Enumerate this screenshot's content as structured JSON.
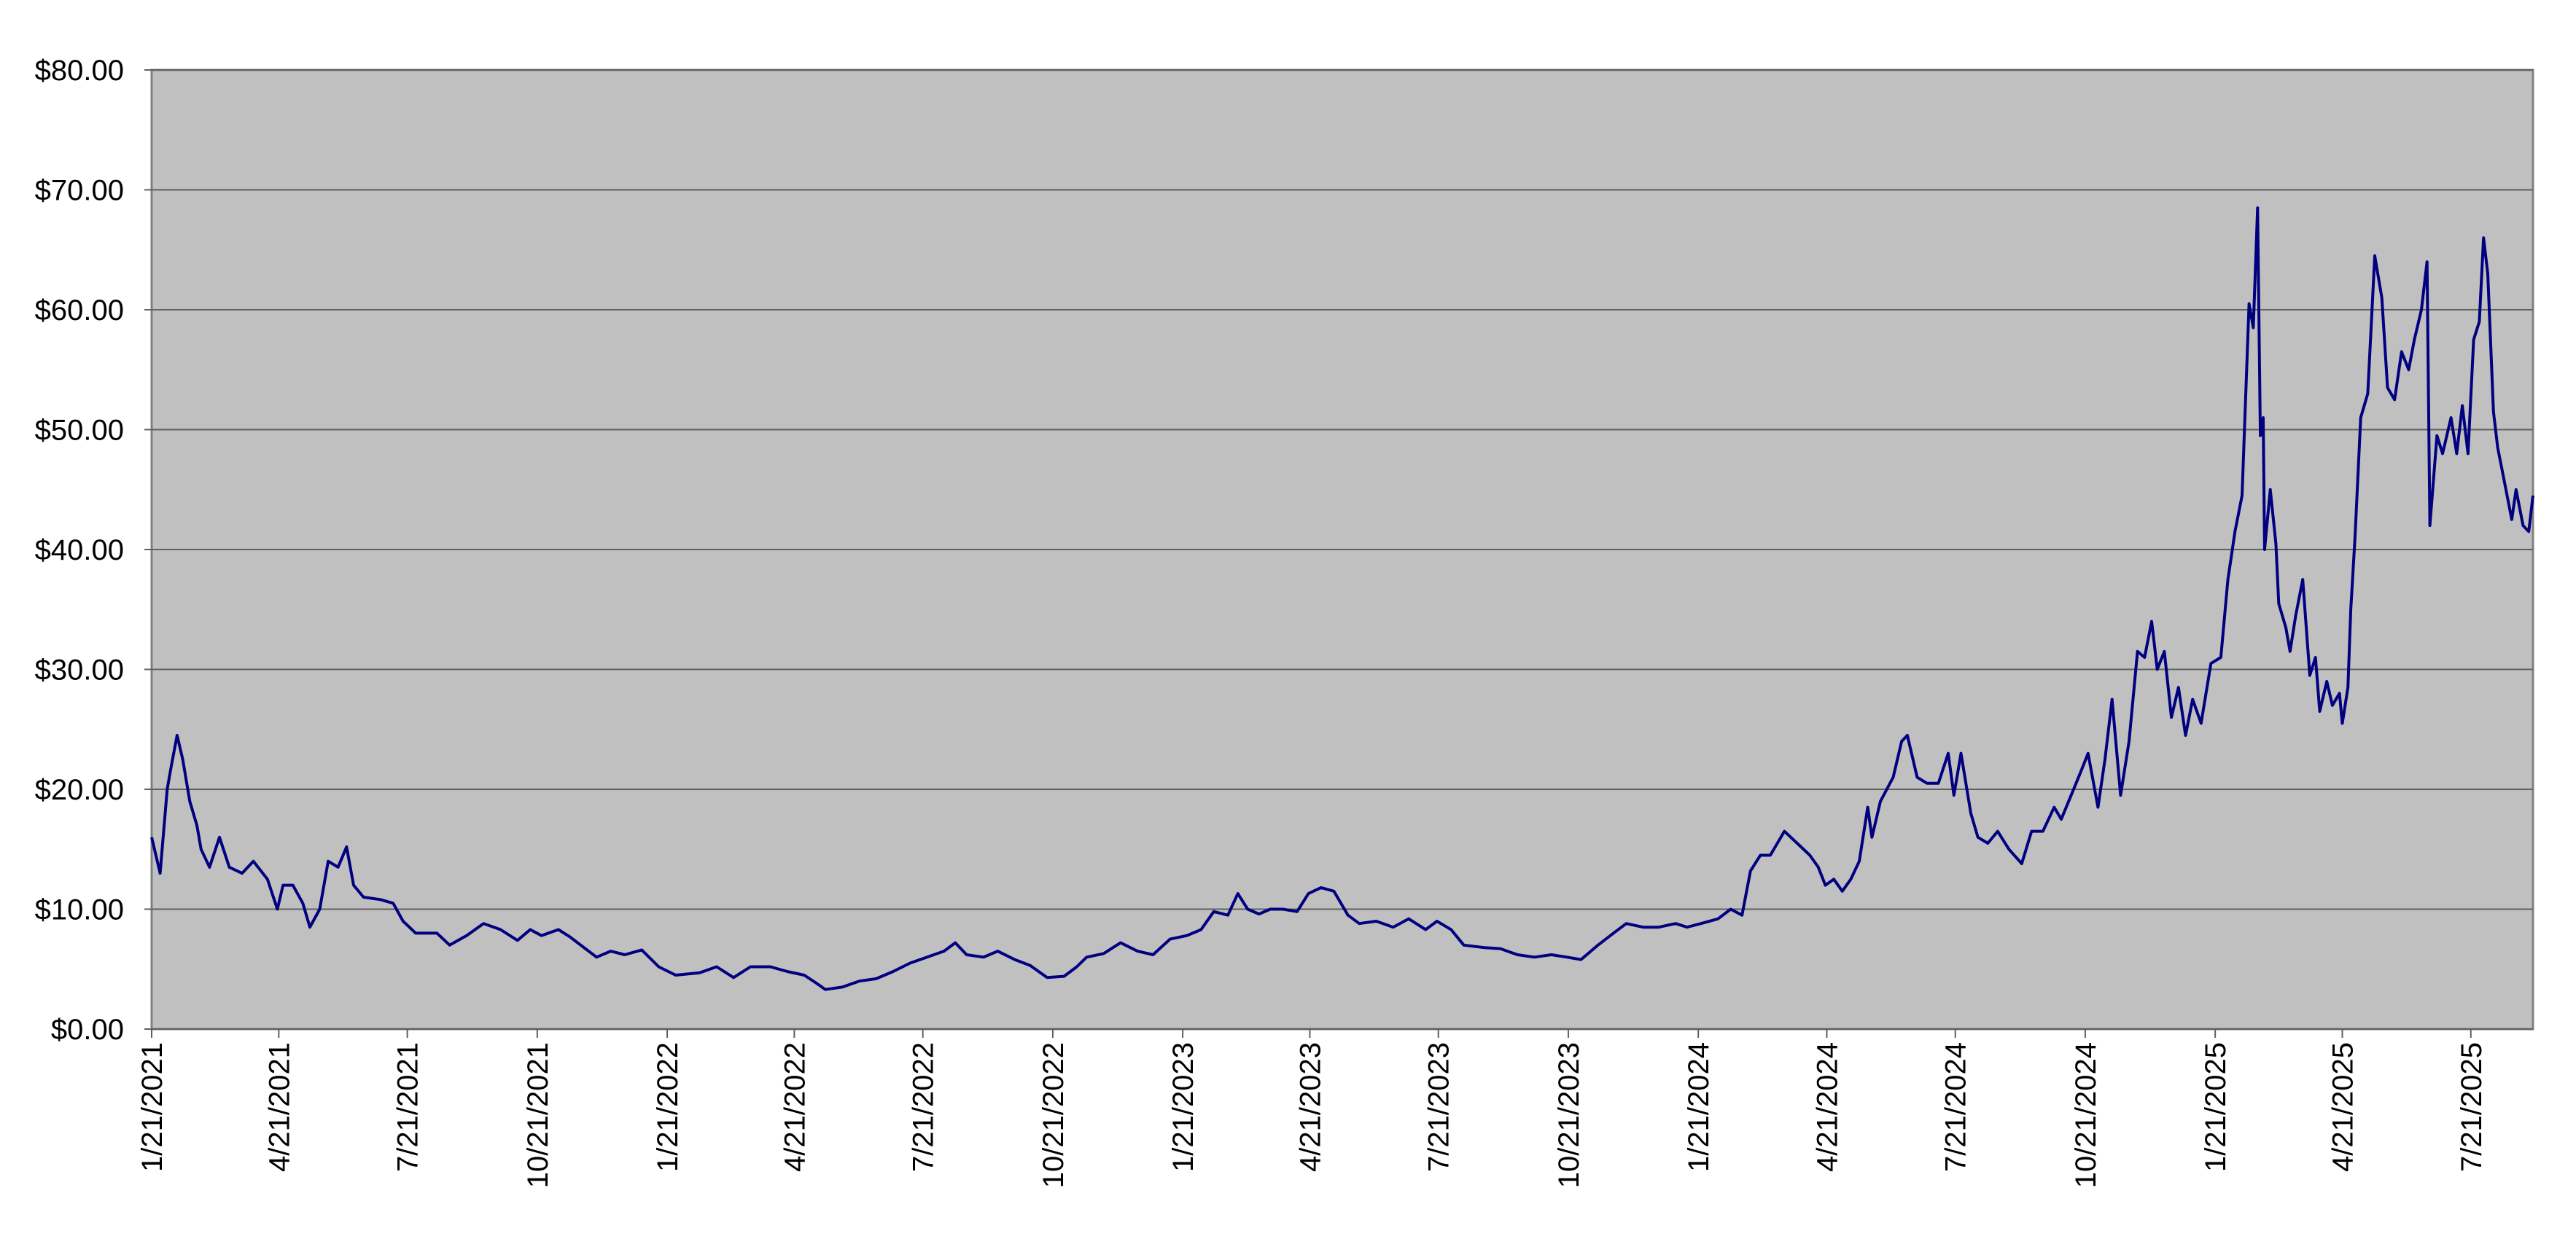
{
  "chart_data": {
    "type": "line",
    "color": "#000080",
    "grid": true,
    "x": [
      "2021-01-21",
      "2021-01-27",
      "2021-02-01",
      "2021-02-04",
      "2021-02-08",
      "2021-02-12",
      "2021-02-17",
      "2021-02-22",
      "2021-02-25",
      "2021-03-03",
      "2021-03-10",
      "2021-03-17",
      "2021-03-26",
      "2021-04-03",
      "2021-04-13",
      "2021-04-20",
      "2021-04-24",
      "2021-05-01",
      "2021-05-08",
      "2021-05-13",
      "2021-05-20",
      "2021-05-26",
      "2021-06-02",
      "2021-06-08",
      "2021-06-13",
      "2021-06-20",
      "2021-07-02",
      "2021-07-11",
      "2021-07-18",
      "2021-07-27",
      "2021-08-11",
      "2021-08-20",
      "2021-09-01",
      "2021-09-13",
      "2021-09-25",
      "2021-10-07",
      "2021-10-16",
      "2021-10-24",
      "2021-11-05",
      "2021-11-13",
      "2021-11-23",
      "2021-12-02",
      "2021-12-12",
      "2021-12-22",
      "2022-01-03",
      "2022-01-15",
      "2022-01-27",
      "2022-02-13",
      "2022-02-25",
      "2022-03-09",
      "2022-03-21",
      "2022-04-04",
      "2022-04-16",
      "2022-04-28",
      "2022-05-07",
      "2022-05-13",
      "2022-05-25",
      "2022-06-06",
      "2022-06-18",
      "2022-06-30",
      "2022-07-12",
      "2022-07-24",
      "2022-08-05",
      "2022-08-13",
      "2022-08-21",
      "2022-09-02",
      "2022-09-12",
      "2022-09-24",
      "2022-10-05",
      "2022-10-17",
      "2022-10-29",
      "2022-11-07",
      "2022-11-14",
      "2022-11-26",
      "2022-12-08",
      "2022-12-20",
      "2022-12-31",
      "2023-01-12",
      "2023-01-24",
      "2023-02-03",
      "2023-02-12",
      "2023-02-22",
      "2023-03-01",
      "2023-03-08",
      "2023-03-16",
      "2023-03-24",
      "2023-04-02",
      "2023-04-12",
      "2023-04-20",
      "2023-04-29",
      "2023-05-08",
      "2023-05-18",
      "2023-05-26",
      "2023-06-07",
      "2023-06-19",
      "2023-06-30",
      "2023-07-12",
      "2023-07-20",
      "2023-07-30",
      "2023-08-08",
      "2023-08-22",
      "2023-09-03",
      "2023-09-15",
      "2023-09-27",
      "2023-10-09",
      "2023-10-20",
      "2023-10-30",
      "2023-11-11",
      "2023-11-22",
      "2023-12-01",
      "2023-12-13",
      "2023-12-24",
      "2024-01-05",
      "2024-01-13",
      "2024-01-23",
      "2024-02-04",
      "2024-02-13",
      "2024-02-21",
      "2024-02-27",
      "2024-03-05",
      "2024-03-12",
      "2024-03-22",
      "2024-03-31",
      "2024-04-09",
      "2024-04-15",
      "2024-04-20",
      "2024-04-26",
      "2024-05-02",
      "2024-05-08",
      "2024-05-14",
      "2024-05-20",
      "2024-05-23",
      "2024-05-29",
      "2024-06-07",
      "2024-06-13",
      "2024-06-17",
      "2024-06-24",
      "2024-07-01",
      "2024-07-09",
      "2024-07-16",
      "2024-07-20",
      "2024-07-25",
      "2024-08-01",
      "2024-08-06",
      "2024-08-13",
      "2024-08-20",
      "2024-08-28",
      "2024-09-06",
      "2024-09-13",
      "2024-09-21",
      "2024-09-29",
      "2024-10-04",
      "2024-10-11",
      "2024-10-18",
      "2024-10-23",
      "2024-10-30",
      "2024-11-04",
      "2024-11-09",
      "2024-11-15",
      "2024-11-21",
      "2024-11-27",
      "2024-12-02",
      "2024-12-07",
      "2024-12-11",
      "2024-12-16",
      "2024-12-21",
      "2024-12-26",
      "2024-12-31",
      "2025-01-05",
      "2025-01-11",
      "2025-01-18",
      "2025-01-25",
      "2025-01-30",
      "2025-02-04",
      "2025-02-09",
      "2025-02-14",
      "2025-02-17",
      "2025-02-20",
      "2025-02-22",
      "2025-02-24",
      "2025-02-25",
      "2025-03-01",
      "2025-03-05",
      "2025-03-07",
      "2025-03-12",
      "2025-03-15",
      "2025-03-19",
      "2025-03-24",
      "2025-03-29",
      "2025-04-02",
      "2025-04-05",
      "2025-04-10",
      "2025-04-14",
      "2025-04-19",
      "2025-04-21",
      "2025-04-25",
      "2025-04-27",
      "2025-04-30",
      "2025-05-04",
      "2025-05-09",
      "2025-05-14",
      "2025-05-19",
      "2025-05-23",
      "2025-05-28",
      "2025-06-02",
      "2025-06-07",
      "2025-06-11",
      "2025-06-16",
      "2025-06-20",
      "2025-06-22",
      "2025-06-27",
      "2025-07-01",
      "2025-07-07",
      "2025-07-11",
      "2025-07-15",
      "2025-07-19",
      "2025-07-23",
      "2025-07-27",
      "2025-07-30",
      "2025-08-02",
      "2025-08-06",
      "2025-08-09",
      "2025-08-14",
      "2025-08-19",
      "2025-08-22",
      "2025-08-27",
      "2025-08-31",
      "2025-09-03"
    ],
    "values": [
      16,
      13,
      20,
      22,
      24.5,
      22.5,
      19,
      17,
      15,
      13.5,
      16,
      13.5,
      13,
      14,
      12.5,
      10,
      12,
      12,
      10.5,
      8.5,
      10,
      14,
      13.5,
      15.2,
      12,
      11,
      10.8,
      10.5,
      9,
      8,
      8,
      7,
      7.8,
      8.8,
      8.3,
      7.4,
      8.3,
      7.8,
      8.3,
      7.7,
      6.8,
      6,
      6.5,
      6.2,
      6.6,
      5.2,
      4.5,
      4.7,
      5.2,
      4.3,
      5.2,
      5.2,
      4.8,
      4.5,
      3.8,
      3.3,
      3.5,
      4,
      4.2,
      4.8,
      5.5,
      6,
      6.5,
      7.2,
      6.2,
      6,
      6.5,
      5.8,
      5.3,
      4.3,
      4.4,
      5.2,
      6,
      6.3,
      7.2,
      6.5,
      6.2,
      7.5,
      7.8,
      8.3,
      9.8,
      9.5,
      11.3,
      10,
      9.6,
      10,
      10,
      9.8,
      11.3,
      11.8,
      11.5,
      9.5,
      8.8,
      9,
      8.5,
      9.2,
      8.3,
      9,
      8.3,
      7,
      6.8,
      6.7,
      6.2,
      6,
      6.2,
      6,
      5.8,
      7,
      8,
      8.8,
      8.5,
      8.5,
      8.8,
      8.5,
      8.8,
      9.2,
      10,
      9.5,
      13.2,
      14.5,
      14.5,
      16.5,
      15.5,
      14.5,
      13.5,
      12,
      12.5,
      11.5,
      12.5,
      14,
      18.5,
      16,
      19,
      21,
      24,
      24.5,
      21,
      20.5,
      20.5,
      23,
      19.5,
      23,
      18,
      16,
      15.5,
      16.5,
      15,
      13.8,
      16.5,
      16.5,
      18.5,
      17.5,
      19.5,
      21.5,
      23,
      18.5,
      22.5,
      27.5,
      19.5,
      24,
      31.5,
      31,
      34,
      30,
      31.5,
      26,
      28.5,
      24.5,
      27.5,
      25.5,
      30.5,
      31,
      37.5,
      41.5,
      44.5,
      60.5,
      58.5,
      68.5,
      49.5,
      51,
      40,
      45,
      40.5,
      35.5,
      33.5,
      31.5,
      34.5,
      37.5,
      29.5,
      31,
      26.5,
      29,
      27,
      28,
      25.5,
      28.5,
      35,
      41,
      51,
      53,
      64.5,
      61,
      53.5,
      52.5,
      56.5,
      55,
      57.5,
      60,
      64,
      42,
      49.5,
      48,
      51,
      48,
      52,
      48,
      57.5,
      59,
      66,
      63,
      51.5,
      48.5,
      45.5,
      42.5,
      45,
      42,
      41.5,
      44.5
    ],
    "xlim": [
      "2021-01-21",
      "2025-09-03"
    ],
    "xticks": [
      {
        "value": "2021-01-21",
        "label": "1/21/2021"
      },
      {
        "value": "2021-04-21",
        "label": "4/21/2021"
      },
      {
        "value": "2021-07-21",
        "label": "7/21/2021"
      },
      {
        "value": "2021-10-21",
        "label": "10/21/2021"
      },
      {
        "value": "2022-01-21",
        "label": "1/21/2022"
      },
      {
        "value": "2022-04-21",
        "label": "4/21/2022"
      },
      {
        "value": "2022-07-21",
        "label": "7/21/2022"
      },
      {
        "value": "2022-10-21",
        "label": "10/21/2022"
      },
      {
        "value": "2023-01-21",
        "label": "1/21/2023"
      },
      {
        "value": "2023-04-21",
        "label": "4/21/2023"
      },
      {
        "value": "2023-07-21",
        "label": "7/21/2023"
      },
      {
        "value": "2023-10-21",
        "label": "10/21/2023"
      },
      {
        "value": "2024-01-21",
        "label": "1/21/2024"
      },
      {
        "value": "2024-04-21",
        "label": "4/21/2024"
      },
      {
        "value": "2024-07-21",
        "label": "7/21/2024"
      },
      {
        "value": "2024-10-21",
        "label": "10/21/2024"
      },
      {
        "value": "2025-01-21",
        "label": "1/21/2025"
      },
      {
        "value": "2025-04-21",
        "label": "4/21/2025"
      },
      {
        "value": "2025-07-21",
        "label": "7/21/2025"
      }
    ],
    "ylim": [
      0,
      80
    ],
    "yticks": [
      {
        "value": 0,
        "label": "$0.00"
      },
      {
        "value": 10,
        "label": "$10.00"
      },
      {
        "value": 20,
        "label": "$20.00"
      },
      {
        "value": 30,
        "label": "$30.00"
      },
      {
        "value": 40,
        "label": "$40.00"
      },
      {
        "value": 50,
        "label": "$50.00"
      },
      {
        "value": 60,
        "label": "$60.00"
      },
      {
        "value": 70,
        "label": "$70.00"
      },
      {
        "value": 80,
        "label": "$80.00"
      }
    ]
  }
}
